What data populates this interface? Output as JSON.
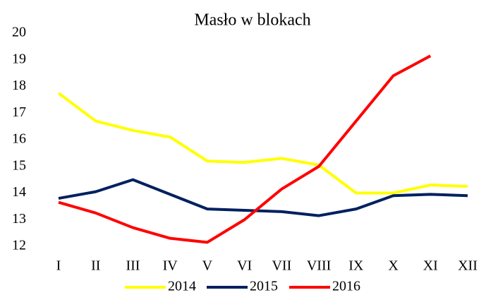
{
  "chart_data": {
    "type": "line",
    "title": "Masło w blokach",
    "categories": [
      "I",
      "II",
      "III",
      "IV",
      "V",
      "VI",
      "VII",
      "VIII",
      "IX",
      "X",
      "XI",
      "XII"
    ],
    "series": [
      {
        "name": "2014",
        "color": "#ffff00",
        "values": [
          17.75,
          16.7,
          16.35,
          16.1,
          15.2,
          15.15,
          15.3,
          15.05,
          14.0,
          14.0,
          14.3,
          14.25
        ]
      },
      {
        "name": "2015",
        "color": "#002060",
        "values": [
          13.8,
          14.05,
          14.5,
          13.95,
          13.4,
          13.35,
          13.3,
          13.15,
          13.4,
          13.9,
          13.95,
          13.9
        ]
      },
      {
        "name": "2016",
        "color": "#ff0000",
        "values": [
          13.65,
          13.25,
          12.7,
          12.3,
          12.15,
          13.0,
          14.15,
          15.0,
          16.7,
          18.4,
          19.15,
          null
        ]
      }
    ],
    "ylim": [
      12,
      20
    ],
    "yticks": [
      12,
      13,
      14,
      15,
      16,
      17,
      18,
      19,
      20
    ],
    "grid": false,
    "legend": "bottom"
  }
}
